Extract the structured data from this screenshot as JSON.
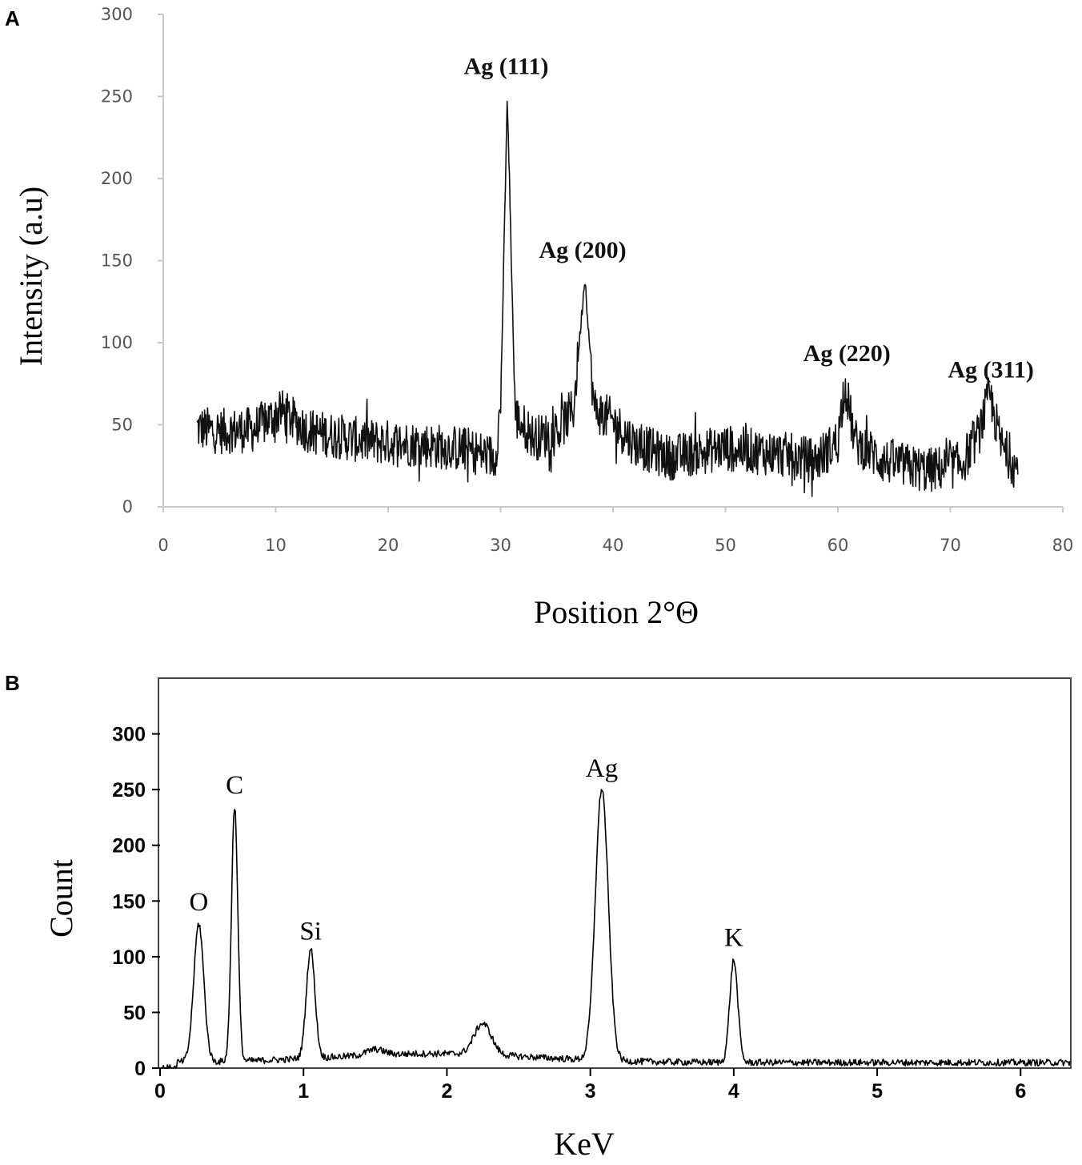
{
  "panel_labels": {
    "a": "A",
    "b": "B"
  },
  "chart_data": [
    {
      "panel": "A",
      "type": "line",
      "xlabel": "Position 2°Θ",
      "ylabel": "Intensity  (a.u)",
      "xlim": [
        0,
        80
      ],
      "ylim": [
        0,
        300
      ],
      "xticks": [
        "0",
        "10",
        "20",
        "30",
        "40",
        "50",
        "60",
        "70",
        "80"
      ],
      "yticks": [
        "0",
        "50",
        "100",
        "150",
        "200",
        "250",
        "300"
      ],
      "grid": false,
      "color": "#111111",
      "baseline": [
        [
          3,
          48
        ],
        [
          5,
          46
        ],
        [
          8,
          47
        ],
        [
          10.5,
          58
        ],
        [
          13,
          46
        ],
        [
          18,
          40
        ],
        [
          23,
          38
        ],
        [
          27,
          35
        ],
        [
          29.5,
          30
        ],
        [
          30,
          60
        ],
        [
          30.6,
          250
        ],
        [
          31.3,
          55
        ],
        [
          33,
          42
        ],
        [
          35,
          45
        ],
        [
          36.5,
          60
        ],
        [
          37.5,
          140
        ],
        [
          38.3,
          60
        ],
        [
          40,
          52
        ],
        [
          42,
          38
        ],
        [
          45,
          30
        ],
        [
          50,
          36
        ],
        [
          55,
          32
        ],
        [
          58,
          28
        ],
        [
          60,
          40
        ],
        [
          60.6,
          76
        ],
        [
          61.5,
          40
        ],
        [
          64,
          28
        ],
        [
          68,
          22
        ],
        [
          71,
          26
        ],
        [
          72.5,
          44
        ],
        [
          73.5,
          68
        ],
        [
          74.5,
          38
        ],
        [
          76,
          22
        ]
      ],
      "peak_labels": [
        {
          "label": "Ag (111)",
          "x": 30.5,
          "y": 255
        },
        {
          "label": "Ag (200)",
          "x": 37.3,
          "y": 143
        },
        {
          "label": "Ag (220)",
          "x": 60.8,
          "y": 80
        },
        {
          "label": "Ag (311)",
          "x": 73.6,
          "y": 70
        }
      ]
    },
    {
      "panel": "B",
      "type": "line",
      "xlabel": "KeV",
      "ylabel": "Count",
      "xlim": [
        0,
        6.35
      ],
      "ylim": [
        0,
        350
      ],
      "xticks": [
        "0",
        "1",
        "2",
        "3",
        "4",
        "5",
        "6"
      ],
      "yticks": [
        "0",
        "50",
        "100",
        "150",
        "200",
        "250",
        "300"
      ],
      "grid": false,
      "color": "#000000",
      "peaks": [
        {
          "label": "O",
          "x": 0.27,
          "y": 130
        },
        {
          "label": "C",
          "x": 0.52,
          "y": 235
        },
        {
          "label": "Si",
          "x": 1.05,
          "y": 104
        },
        {
          "label": "Ag",
          "x": 3.08,
          "y": 250
        },
        {
          "label": "K",
          "x": 4.0,
          "y": 98
        }
      ],
      "minor_bumps": [
        {
          "x": 2.25,
          "y": 38
        },
        {
          "x": 1.5,
          "y": 15
        }
      ]
    }
  ]
}
